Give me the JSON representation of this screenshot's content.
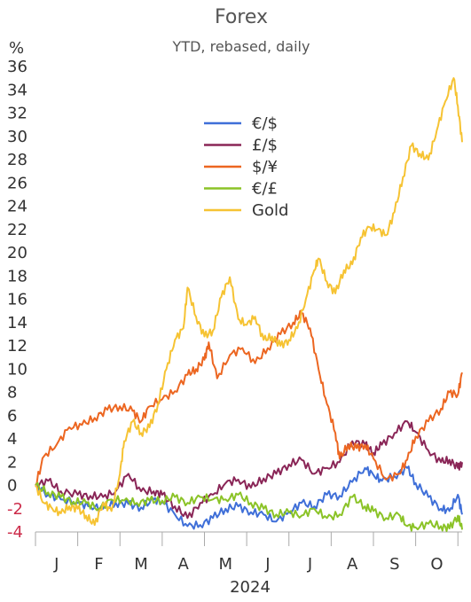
{
  "chart_data": {
    "type": "line",
    "title": "Forex",
    "subtitle": "YTD, rebased, daily",
    "unit": "%",
    "xlabel": "2024",
    "x_ticks": [
      "J",
      "F",
      "M",
      "A",
      "M",
      "J",
      "J",
      "A",
      "S",
      "O"
    ],
    "x_range": [
      0,
      10.1
    ],
    "ylim": [
      -4,
      36
    ],
    "y_ticks": [
      -4,
      -2,
      0,
      2,
      4,
      6,
      8,
      10,
      12,
      14,
      16,
      18,
      20,
      22,
      24,
      26,
      28,
      30,
      32,
      34,
      36
    ],
    "legend_position": "center-top",
    "series": [
      {
        "name": "€/$",
        "color": "#3f6fd8",
        "points": [
          [
            0,
            0
          ],
          [
            0.3,
            -0.8
          ],
          [
            0.6,
            -1.2
          ],
          [
            1.0,
            -1.5
          ],
          [
            1.3,
            -1.8
          ],
          [
            1.6,
            -2.0
          ],
          [
            1.9,
            -1.5
          ],
          [
            2.2,
            -1.6
          ],
          [
            2.5,
            -1.9
          ],
          [
            2.8,
            -1.2
          ],
          [
            3.0,
            -1.4
          ],
          [
            3.3,
            -2.5
          ],
          [
            3.6,
            -3.5
          ],
          [
            3.9,
            -3.4
          ],
          [
            4.2,
            -2.8
          ],
          [
            4.5,
            -2.0
          ],
          [
            4.8,
            -1.8
          ],
          [
            5.1,
            -2.3
          ],
          [
            5.4,
            -2.5
          ],
          [
            5.7,
            -3.1
          ],
          [
            6.0,
            -2.3
          ],
          [
            6.3,
            -1.5
          ],
          [
            6.6,
            -1.8
          ],
          [
            6.9,
            -0.8
          ],
          [
            7.2,
            -0.9
          ],
          [
            7.5,
            0.3
          ],
          [
            7.8,
            1.5
          ],
          [
            8.0,
            0.9
          ],
          [
            8.2,
            0.4
          ],
          [
            8.5,
            0.8
          ],
          [
            8.8,
            1.5
          ],
          [
            9.0,
            0.2
          ],
          [
            9.3,
            -1.0
          ],
          [
            9.6,
            -2.0
          ],
          [
            9.8,
            -2.2
          ],
          [
            10.0,
            -0.8
          ],
          [
            10.1,
            -2.5
          ]
        ]
      },
      {
        "name": "£/$",
        "color": "#8a2657",
        "points": [
          [
            0,
            0
          ],
          [
            0.3,
            0.4
          ],
          [
            0.6,
            -0.5
          ],
          [
            1.0,
            -0.8
          ],
          [
            1.3,
            -0.9
          ],
          [
            1.6,
            -1.0
          ],
          [
            1.9,
            -0.5
          ],
          [
            2.2,
            1.0
          ],
          [
            2.5,
            -0.5
          ],
          [
            2.8,
            -0.5
          ],
          [
            3.0,
            -0.8
          ],
          [
            3.3,
            -1.8
          ],
          [
            3.6,
            -2.8
          ],
          [
            3.9,
            -1.5
          ],
          [
            4.2,
            -0.8
          ],
          [
            4.5,
            0.2
          ],
          [
            4.8,
            0.5
          ],
          [
            5.1,
            -0.2
          ],
          [
            5.4,
            0.6
          ],
          [
            5.7,
            1.0
          ],
          [
            6.0,
            1.8
          ],
          [
            6.3,
            2.2
          ],
          [
            6.6,
            1.0
          ],
          [
            6.9,
            1.5
          ],
          [
            7.2,
            2.0
          ],
          [
            7.5,
            3.8
          ],
          [
            7.8,
            3.5
          ],
          [
            8.0,
            2.8
          ],
          [
            8.2,
            3.5
          ],
          [
            8.5,
            4.5
          ],
          [
            8.8,
            5.5
          ],
          [
            9.0,
            4.6
          ],
          [
            9.3,
            3.0
          ],
          [
            9.6,
            2.0
          ],
          [
            9.8,
            2.2
          ],
          [
            10.0,
            1.5
          ],
          [
            10.1,
            2.0
          ]
        ]
      },
      {
        "name": "$/¥",
        "color": "#ec6621",
        "points": [
          [
            0,
            0
          ],
          [
            0.2,
            2.5
          ],
          [
            0.5,
            3.5
          ],
          [
            0.8,
            5.0
          ],
          [
            1.1,
            5.2
          ],
          [
            1.4,
            5.8
          ],
          [
            1.7,
            6.5
          ],
          [
            2.0,
            6.8
          ],
          [
            2.3,
            6.4
          ],
          [
            2.5,
            5.5
          ],
          [
            2.7,
            6.8
          ],
          [
            3.0,
            7.4
          ],
          [
            3.3,
            8.1
          ],
          [
            3.6,
            9.5
          ],
          [
            3.8,
            10.0
          ],
          [
            4.0,
            10.8
          ],
          [
            4.1,
            12.3
          ],
          [
            4.3,
            9.2
          ],
          [
            4.6,
            11.2
          ],
          [
            4.9,
            11.8
          ],
          [
            5.2,
            10.5
          ],
          [
            5.5,
            11.8
          ],
          [
            5.8,
            13.0
          ],
          [
            6.1,
            14.0
          ],
          [
            6.3,
            14.8
          ],
          [
            6.5,
            13.5
          ],
          [
            6.7,
            10.0
          ],
          [
            6.9,
            7.0
          ],
          [
            7.1,
            4.5
          ],
          [
            7.2,
            2.3
          ],
          [
            7.4,
            3.5
          ],
          [
            7.6,
            3.2
          ],
          [
            7.8,
            3.5
          ],
          [
            8.0,
            2.3
          ],
          [
            8.3,
            0.5
          ],
          [
            8.6,
            1.0
          ],
          [
            8.8,
            2.2
          ],
          [
            9.0,
            4.2
          ],
          [
            9.3,
            5.5
          ],
          [
            9.6,
            6.6
          ],
          [
            9.8,
            8.0
          ],
          [
            10.0,
            7.8
          ],
          [
            10.1,
            9.7
          ]
        ]
      },
      {
        "name": "€/£",
        "color": "#8bc327",
        "points": [
          [
            0,
            0
          ],
          [
            0.3,
            -0.6
          ],
          [
            0.6,
            -1.0
          ],
          [
            0.9,
            -1.4
          ],
          [
            1.2,
            -1.5
          ],
          [
            1.5,
            -2.0
          ],
          [
            1.8,
            -1.2
          ],
          [
            2.1,
            -1.3
          ],
          [
            2.4,
            -1.5
          ],
          [
            2.7,
            -1.3
          ],
          [
            3.0,
            -1.3
          ],
          [
            3.3,
            -1.0
          ],
          [
            3.6,
            -1.5
          ],
          [
            3.9,
            -1.0
          ],
          [
            4.2,
            -1.2
          ],
          [
            4.5,
            -1.2
          ],
          [
            4.8,
            -0.8
          ],
          [
            5.1,
            -1.5
          ],
          [
            5.4,
            -2.0
          ],
          [
            5.7,
            -2.5
          ],
          [
            6.0,
            -2.3
          ],
          [
            6.3,
            -2.6
          ],
          [
            6.6,
            -2.0
          ],
          [
            6.9,
            -2.8
          ],
          [
            7.2,
            -2.5
          ],
          [
            7.5,
            -1.0
          ],
          [
            7.8,
            -1.8
          ],
          [
            8.0,
            -2.2
          ],
          [
            8.3,
            -2.8
          ],
          [
            8.6,
            -2.5
          ],
          [
            8.8,
            -3.5
          ],
          [
            9.0,
            -3.6
          ],
          [
            9.3,
            -3.3
          ],
          [
            9.6,
            -3.5
          ],
          [
            9.8,
            -3.7
          ],
          [
            10.0,
            -2.6
          ],
          [
            10.1,
            -3.8
          ]
        ]
      },
      {
        "name": "Gold",
        "color": "#f6c333",
        "points": [
          [
            0,
            0
          ],
          [
            0.2,
            -1.5
          ],
          [
            0.4,
            -2.0
          ],
          [
            0.6,
            -2.4
          ],
          [
            0.8,
            -1.8
          ],
          [
            1.0,
            -2.0
          ],
          [
            1.2,
            -2.6
          ],
          [
            1.4,
            -3.4
          ],
          [
            1.6,
            -1.5
          ],
          [
            1.8,
            -2.2
          ],
          [
            2.0,
            1.0
          ],
          [
            2.1,
            3.8
          ],
          [
            2.3,
            5.5
          ],
          [
            2.5,
            4.5
          ],
          [
            2.7,
            5.0
          ],
          [
            2.9,
            7.0
          ],
          [
            3.1,
            10.0
          ],
          [
            3.3,
            12.5
          ],
          [
            3.5,
            13.5
          ],
          [
            3.6,
            17.0
          ],
          [
            3.8,
            14.5
          ],
          [
            4.0,
            12.8
          ],
          [
            4.2,
            13.3
          ],
          [
            4.4,
            16.2
          ],
          [
            4.6,
            17.9
          ],
          [
            4.8,
            14.3
          ],
          [
            5.0,
            13.8
          ],
          [
            5.2,
            14.5
          ],
          [
            5.4,
            12.5
          ],
          [
            5.6,
            12.8
          ],
          [
            5.8,
            12.0
          ],
          [
            6.0,
            12.5
          ],
          [
            6.2,
            13.5
          ],
          [
            6.4,
            16.0
          ],
          [
            6.6,
            18.5
          ],
          [
            6.7,
            19.5
          ],
          [
            6.9,
            17.5
          ],
          [
            7.1,
            16.5
          ],
          [
            7.3,
            18.5
          ],
          [
            7.5,
            19.0
          ],
          [
            7.7,
            21.3
          ],
          [
            7.9,
            22.2
          ],
          [
            8.1,
            22.0
          ],
          [
            8.3,
            21.5
          ],
          [
            8.5,
            23.5
          ],
          [
            8.7,
            26.5
          ],
          [
            8.9,
            29.2
          ],
          [
            9.1,
            28.5
          ],
          [
            9.3,
            28.0
          ],
          [
            9.5,
            30.5
          ],
          [
            9.7,
            33.0
          ],
          [
            9.9,
            35.0
          ],
          [
            10.0,
            32.6
          ],
          [
            10.1,
            29.5
          ]
        ]
      }
    ]
  }
}
